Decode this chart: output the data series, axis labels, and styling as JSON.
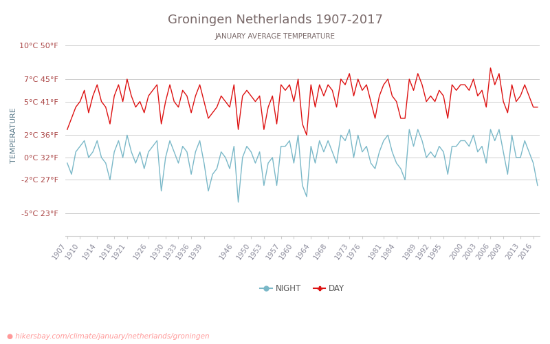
{
  "title": "Groningen Netherlands 1907-2017",
  "subtitle": "JANUARY AVERAGE TEMPERATURE",
  "ylabel": "TEMPERATURE",
  "xlabel_url": "hikersbay.com/climate/january/netherlands/groningen",
  "title_color": "#7a6a6a",
  "subtitle_color": "#7a6a6a",
  "ylabel_color": "#5a7a8a",
  "background_color": "#ffffff",
  "grid_color": "#cccccc",
  "day_color": "#dd1111",
  "night_color": "#7ab8c8",
  "years": [
    1907,
    1908,
    1909,
    1910,
    1911,
    1912,
    1913,
    1914,
    1915,
    1916,
    1917,
    1918,
    1919,
    1920,
    1921,
    1922,
    1923,
    1924,
    1925,
    1926,
    1927,
    1928,
    1929,
    1930,
    1931,
    1932,
    1933,
    1934,
    1935,
    1936,
    1937,
    1938,
    1939,
    1940,
    1941,
    1942,
    1943,
    1944,
    1945,
    1946,
    1947,
    1948,
    1949,
    1950,
    1951,
    1952,
    1953,
    1954,
    1955,
    1956,
    1957,
    1958,
    1959,
    1960,
    1961,
    1962,
    1963,
    1964,
    1965,
    1966,
    1967,
    1968,
    1969,
    1970,
    1971,
    1972,
    1973,
    1974,
    1975,
    1976,
    1977,
    1978,
    1979,
    1980,
    1981,
    1982,
    1983,
    1984,
    1985,
    1986,
    1987,
    1988,
    1989,
    1990,
    1991,
    1992,
    1993,
    1994,
    1995,
    1996,
    1997,
    1998,
    1999,
    2000,
    2001,
    2002,
    2003,
    2004,
    2005,
    2006,
    2007,
    2008,
    2009,
    2010,
    2011,
    2012,
    2013,
    2014,
    2015,
    2016,
    2017
  ],
  "day_temps": [
    2.5,
    3.5,
    4.5,
    5.0,
    6.0,
    4.0,
    5.5,
    6.5,
    5.0,
    4.5,
    3.0,
    5.5,
    6.5,
    5.0,
    7.0,
    5.5,
    4.5,
    5.0,
    4.0,
    5.5,
    6.0,
    6.5,
    3.0,
    5.0,
    6.5,
    5.0,
    4.5,
    6.0,
    5.5,
    4.0,
    5.5,
    6.5,
    5.0,
    3.5,
    4.0,
    4.5,
    5.5,
    5.0,
    4.5,
    6.5,
    2.5,
    5.5,
    6.0,
    5.5,
    5.0,
    5.5,
    2.5,
    4.5,
    5.5,
    3.0,
    6.5,
    6.0,
    6.5,
    5.0,
    7.0,
    3.0,
    2.0,
    6.5,
    4.5,
    6.5,
    5.5,
    6.5,
    6.0,
    4.5,
    7.0,
    6.5,
    7.5,
    5.5,
    7.0,
    6.0,
    6.5,
    5.0,
    3.5,
    5.5,
    6.5,
    7.0,
    5.5,
    5.0,
    3.5,
    3.5,
    7.0,
    6.0,
    7.5,
    6.5,
    5.0,
    5.5,
    5.0,
    6.0,
    5.5,
    3.5,
    6.5,
    6.0,
    6.5,
    6.5,
    6.0,
    7.0,
    5.5,
    6.0,
    4.5,
    8.0,
    6.5,
    7.5,
    5.0,
    4.0,
    6.5,
    5.0,
    5.5,
    6.5,
    5.5,
    4.5,
    4.5
  ],
  "night_temps": [
    -0.5,
    -1.5,
    0.5,
    1.0,
    1.5,
    0.0,
    0.5,
    1.5,
    0.0,
    -0.5,
    -2.0,
    0.5,
    1.5,
    0.0,
    2.0,
    0.5,
    -0.5,
    0.5,
    -1.0,
    0.5,
    1.0,
    1.5,
    -3.0,
    0.0,
    1.5,
    0.5,
    -0.5,
    1.0,
    0.5,
    -1.5,
    0.5,
    1.5,
    -0.5,
    -3.0,
    -1.5,
    -1.0,
    0.5,
    0.0,
    -1.0,
    1.0,
    -4.0,
    0.0,
    1.0,
    0.5,
    -0.5,
    0.5,
    -2.5,
    -0.5,
    0.0,
    -2.5,
    1.0,
    1.0,
    1.5,
    -0.5,
    2.0,
    -2.5,
    -3.5,
    1.0,
    -0.5,
    1.5,
    0.5,
    1.5,
    0.5,
    -0.5,
    2.0,
    1.5,
    2.5,
    0.0,
    2.0,
    0.5,
    1.0,
    -0.5,
    -1.0,
    0.5,
    1.5,
    2.0,
    0.5,
    -0.5,
    -1.0,
    -2.0,
    2.5,
    1.0,
    2.5,
    1.5,
    0.0,
    0.5,
    0.0,
    1.0,
    0.5,
    -1.5,
    1.0,
    1.0,
    1.5,
    1.5,
    1.0,
    2.0,
    0.5,
    1.0,
    -0.5,
    2.5,
    1.5,
    2.5,
    0.5,
    -1.5,
    2.0,
    0.0,
    0.0,
    1.5,
    0.5,
    -0.5,
    -2.5
  ],
  "yticks_c": [
    -5,
    -2,
    0,
    2,
    5,
    7,
    10
  ],
  "yticks_f": [
    23,
    27,
    32,
    36,
    41,
    45,
    50
  ],
  "ylim": [
    -7,
    11
  ],
  "xtick_labels": [
    "1907",
    "1910",
    "1914",
    "1918",
    "1921",
    "1926",
    "1930",
    "1933",
    "1936",
    "1939",
    "1946",
    "1950",
    "1953",
    "1957",
    "1960",
    "1964",
    "1968",
    "1973",
    "1976",
    "1981",
    "1984",
    "1989",
    "1992",
    "1995",
    "2000",
    "2003",
    "2006",
    "2009",
    "2013",
    "2016"
  ]
}
